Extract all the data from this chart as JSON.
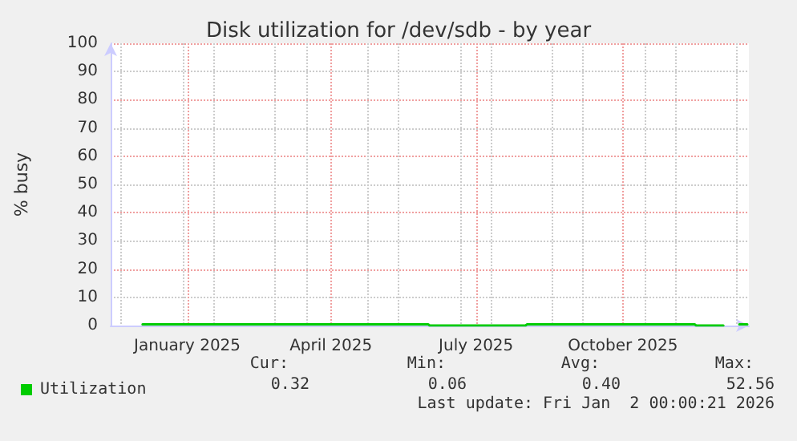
{
  "chart_data": {
    "type": "line",
    "title": "Disk utilization for /dev/sdb - by year",
    "ylabel": "% busy",
    "x": [
      "2024-12-18",
      "2025-06-15",
      "2025-06-16",
      "2025-08-15",
      "2025-08-16",
      "2025-11-29",
      "2025-11-30",
      "2025-12-17",
      "2025-12-20",
      "2025-12-27",
      "2026-01-01"
    ],
    "series": [
      {
        "name": "Utilization",
        "color": "#00cc00",
        "values": [
          0.4,
          0.4,
          0,
          0,
          0.4,
          0.4,
          0,
          0,
          null,
          0.4,
          0.4
        ]
      }
    ],
    "xlim": [
      "2024-11-28",
      "2026-01-02"
    ],
    "xticks": [
      {
        "value": "2025-01-15",
        "label": "January 2025"
      },
      {
        "value": "2025-04-15",
        "label": "April 2025"
      },
      {
        "value": "2025-07-15",
        "label": "July 2025"
      },
      {
        "value": "2025-10-15",
        "label": "October 2025"
      }
    ],
    "ylim": [
      0,
      100
    ],
    "yticks": [
      0,
      10,
      20,
      30,
      40,
      50,
      60,
      70,
      80,
      90,
      100
    ],
    "grid": true,
    "legend": "bottom left",
    "annotations": [
      "Cur:",
      "Min:",
      "Avg:",
      "Max:",
      "0.32",
      "0.06",
      "0.40",
      "52.56",
      "Last update: Fri Jan  2 00:00:21 2026"
    ]
  }
}
